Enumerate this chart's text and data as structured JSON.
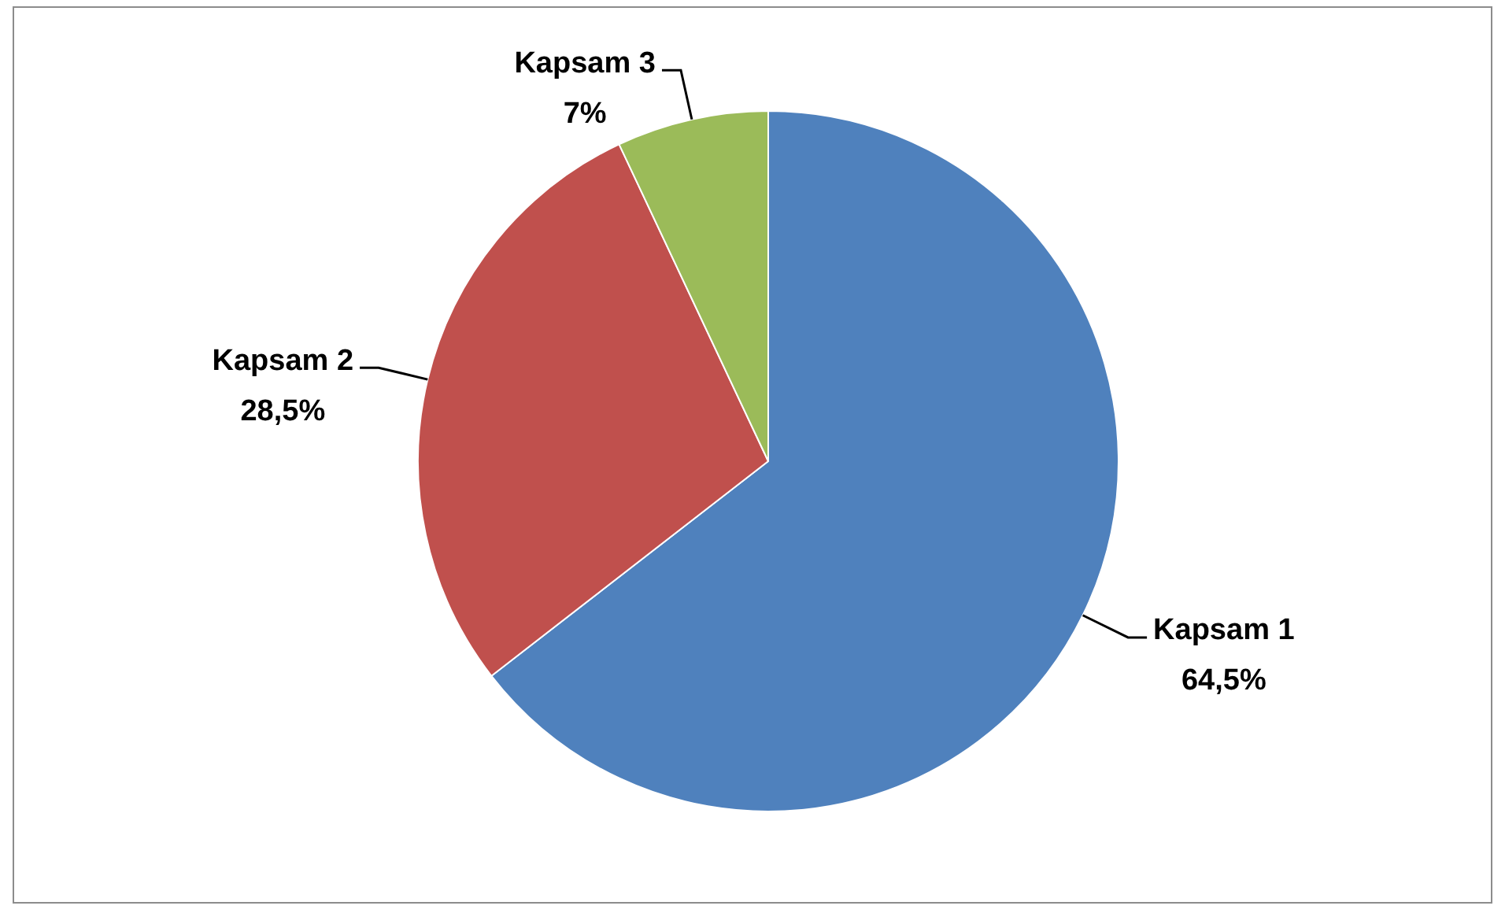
{
  "chart_data": {
    "type": "pie",
    "categories": [
      "Kapsam 1",
      "Kapsam 2",
      "Kapsam 3"
    ],
    "values": [
      64.5,
      28.5,
      7
    ],
    "colors": [
      "#4f81bd",
      "#c0504d",
      "#9bbb59"
    ],
    "value_labels": [
      "64,5%",
      "28,5%",
      "7%"
    ],
    "legend": false
  }
}
